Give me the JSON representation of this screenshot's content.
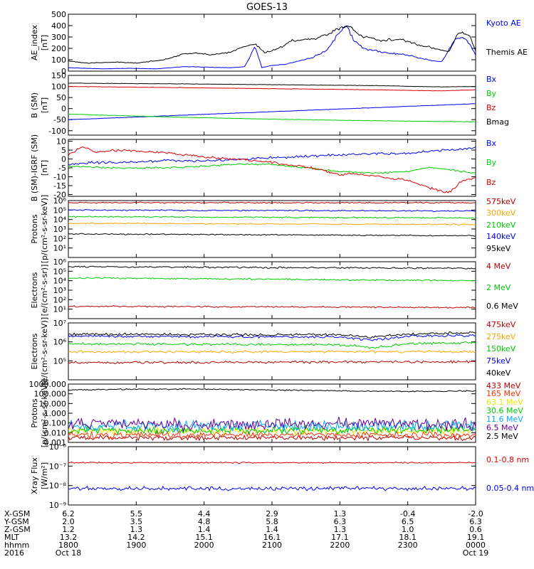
{
  "title": "GOES-13",
  "colors": {
    "black": "#000000",
    "blue": "#0000ee",
    "red": "#dd0000",
    "green": "#00cc00",
    "orange": "#ffa500",
    "darkred": "#bb0000",
    "redorange": "#ff3300",
    "yellow": "#e8e800",
    "cyan": "#00aaff",
    "purple": "#660099"
  },
  "chart_data": [
    {
      "type": "line",
      "id": "ae",
      "ylabel": [
        "AE_index",
        "[nT]"
      ],
      "yscale": "linear",
      "ylim": [
        0,
        500
      ],
      "yticks": [
        "0",
        "100",
        "200",
        "300",
        "400",
        "500"
      ],
      "series": [
        {
          "name": "Kyoto AE",
          "color": "blue",
          "noise": 0.06,
          "x": [
            18.0,
            18.5,
            18.9,
            19.3,
            19.7,
            20.0,
            20.4,
            20.6,
            20.75,
            20.85,
            21.0,
            21.2,
            21.4,
            21.6,
            21.8,
            22.0,
            22.1,
            22.2,
            22.35,
            22.5,
            22.7,
            23.0,
            23.3,
            23.5,
            23.7,
            23.8,
            23.9,
            24.0
          ],
          "y": [
            30,
            20,
            25,
            20,
            40,
            35,
            30,
            40,
            220,
            30,
            50,
            60,
            90,
            120,
            180,
            340,
            400,
            280,
            200,
            180,
            160,
            140,
            100,
            80,
            280,
            300,
            250,
            140
          ]
        },
        {
          "name": "Themis AE",
          "color": "black",
          "noise": 0.05,
          "x": [
            18.0,
            18.3,
            18.7,
            19.0,
            19.4,
            19.7,
            19.9,
            20.1,
            20.4,
            20.6,
            20.75,
            20.9,
            21.1,
            21.3,
            21.6,
            21.8,
            22.0,
            22.15,
            22.3,
            22.6,
            22.9,
            23.1,
            23.4,
            23.6,
            23.75,
            23.9,
            24.0
          ],
          "y": [
            90,
            70,
            80,
            70,
            100,
            150,
            160,
            140,
            170,
            220,
            240,
            160,
            200,
            270,
            280,
            320,
            380,
            400,
            310,
            270,
            280,
            240,
            200,
            170,
            340,
            320,
            180
          ]
        }
      ]
    },
    {
      "type": "line",
      "id": "bsm",
      "ylabel": [
        "B (SM)",
        "[nT]"
      ],
      "yscale": "linear",
      "ylim": [
        -120,
        150
      ],
      "yticks": [
        "-100",
        "-50",
        "0",
        "50",
        "100",
        "150"
      ],
      "series": [
        {
          "name": "Bx",
          "color": "blue",
          "noise": 1.0,
          "x": [
            18.0,
            24.0
          ],
          "y": [
            -50,
            22
          ]
        },
        {
          "name": "By",
          "color": "green",
          "noise": 1.0,
          "x": [
            18.0,
            19.5,
            21.0,
            22.5,
            24.0
          ],
          "y": [
            -25,
            -38,
            -48,
            -55,
            -60
          ]
        },
        {
          "name": "Bz",
          "color": "red",
          "noise": 1.0,
          "x": [
            18.0,
            19.5,
            21.0,
            22.5,
            23.5,
            24.0
          ],
          "y": [
            100,
            95,
            90,
            85,
            80,
            85
          ]
        },
        {
          "name": "Bmag",
          "color": "black",
          "noise": 1.0,
          "x": [
            18.0,
            19.5,
            21.0,
            22.5,
            23.5,
            24.0
          ],
          "y": [
            115,
            112,
            108,
            104,
            98,
            100
          ]
        }
      ]
    },
    {
      "type": "line",
      "id": "bsm_igrf",
      "ylabel": [
        "B (SM)-IGRF (SM)",
        "[nT]"
      ],
      "yscale": "linear",
      "ylim": [
        -21,
        11
      ],
      "yticks": [
        "-20",
        "-15",
        "-10",
        "-5",
        "0",
        "5",
        "10"
      ],
      "series": [
        {
          "name": "Bx",
          "color": "blue",
          "noise": 0.8,
          "x": [
            18.0,
            18.4,
            18.8,
            19.4,
            20.0,
            20.6,
            21.2,
            21.8,
            22.4,
            23.0,
            23.5,
            24.0
          ],
          "y": [
            -3,
            -2,
            -2,
            -1,
            -1,
            0,
            1,
            2,
            3,
            3,
            5,
            6
          ]
        },
        {
          "name": "By",
          "color": "green",
          "noise": 0.6,
          "x": [
            18.0,
            18.5,
            19.0,
            19.5,
            20.0,
            20.5,
            21.0,
            21.5,
            22.0,
            22.5,
            23.0,
            23.3,
            23.6,
            24.0
          ],
          "y": [
            -4,
            -5,
            -5,
            -5,
            -4,
            -3,
            -3,
            -5,
            -7,
            -8,
            -7,
            -5,
            -6,
            -8
          ]
        },
        {
          "name": "Bz",
          "color": "red",
          "noise": 0.8,
          "x": [
            18.0,
            18.2,
            18.4,
            18.8,
            19.2,
            19.6,
            20.0,
            20.4,
            20.8,
            21.2,
            21.6,
            22.0,
            22.2,
            22.6,
            23.0,
            23.3,
            23.5,
            23.6,
            23.7,
            23.8,
            24.0
          ],
          "y": [
            2,
            7,
            4,
            5,
            4,
            3,
            1,
            0,
            -1,
            -3,
            -5,
            -9,
            -8,
            -10,
            -12,
            -16,
            -18,
            -19,
            -16,
            -12,
            -11
          ]
        }
      ]
    },
    {
      "type": "line",
      "id": "protons_low",
      "ylabel": [
        "Protons",
        "[p/(cm²-s-sr-keV)]"
      ],
      "yscale": "log",
      "ylim": [
        1,
        1000000
      ],
      "yticks": [
        "10¹",
        "10²",
        "10³",
        "10⁴",
        "10⁵",
        "10⁶"
      ],
      "series": [
        {
          "name": "575keV",
          "color": "darkred",
          "noise": 0.04,
          "x": [
            18.0,
            24.0
          ],
          "y": [
            600000,
            600000
          ]
        },
        {
          "name": "300keV",
          "color": "orange",
          "noise": 0.04,
          "x": [
            18.0,
            24.0
          ],
          "y": [
            4000,
            3000
          ]
        },
        {
          "name": "210keV",
          "color": "green",
          "noise": 0.04,
          "x": [
            18.0,
            24.0
          ],
          "y": [
            20000,
            15000
          ]
        },
        {
          "name": "140keV",
          "color": "blue",
          "noise": 0.04,
          "x": [
            18.0,
            24.0
          ],
          "y": [
            100000,
            80000
          ]
        },
        {
          "name": "95keV",
          "color": "black",
          "noise": 0.04,
          "x": [
            18.0,
            24.0
          ],
          "y": [
            300,
            200
          ]
        }
      ]
    },
    {
      "type": "line",
      "id": "electrons_high",
      "ylabel": [
        "Electrons",
        "[e/(cm²-s-sr)]"
      ],
      "yscale": "log",
      "ylim": [
        1,
        1000000
      ],
      "yticks": [
        "10¹",
        "10²",
        "10³",
        "10⁴",
        "10⁵",
        "10⁶"
      ],
      "series": [
        {
          "name": "4 MeV",
          "color": "darkred",
          "noise": 0.05,
          "x": [
            18.0,
            24.0
          ],
          "y": [
            20,
            15
          ]
        },
        {
          "name": "2 MeV",
          "color": "green",
          "noise": 0.05,
          "x": [
            18.0,
            24.0
          ],
          "y": [
            20000,
            10000
          ]
        },
        {
          "name": "0.6 MeV",
          "color": "black",
          "noise": 0.05,
          "x": [
            18.0,
            24.0
          ],
          "y": [
            300000,
            200000
          ]
        }
      ]
    },
    {
      "type": "line",
      "id": "electrons_low",
      "ylabel": [
        "Electrons",
        "[e/(cm²-s-sr-keV)]"
      ],
      "yscale": "log",
      "ylim": [
        10000,
        10000000
      ],
      "yticks": [
        "10⁵",
        "10⁶",
        "10⁷"
      ],
      "series": [
        {
          "name": "475keV",
          "color": "darkred",
          "noise": 0.04,
          "x": [
            18.0,
            24.0
          ],
          "y": [
            80000,
            90000
          ]
        },
        {
          "name": "275keV",
          "color": "orange",
          "noise": 0.04,
          "x": [
            18.0,
            24.0
          ],
          "y": [
            300000,
            300000
          ]
        },
        {
          "name": "150keV",
          "color": "green",
          "noise": 0.04,
          "x": [
            18.0,
            22.0,
            22.5,
            23.0,
            24.0
          ],
          "y": [
            800000,
            700000,
            500000,
            800000,
            900000
          ]
        },
        {
          "name": "75keV",
          "color": "blue",
          "noise": 0.04,
          "x": [
            18.0,
            22.0,
            22.5,
            23.0,
            24.0
          ],
          "y": [
            2000000,
            1800000,
            1200000,
            2000000,
            2200000
          ]
        },
        {
          "name": "40keV",
          "color": "black",
          "noise": 0.04,
          "x": [
            18.0,
            22.0,
            22.5,
            23.0,
            24.0
          ],
          "y": [
            2500000,
            2400000,
            1800000,
            2600000,
            3000000
          ]
        }
      ]
    },
    {
      "type": "line",
      "id": "protons_high",
      "ylabel": [
        "Protons",
        "[p/(cm²-s-sr-keV)]"
      ],
      "yscale": "log",
      "ylim": [
        0.001,
        1000
      ],
      "yticks": [
        "0.001",
        "0.010",
        "0.100",
        "1.000",
        "10.000",
        "100.000",
        "1000.000"
      ],
      "series": [
        {
          "name": "433 MeV",
          "color": "darkred",
          "noise": 0.15,
          "x": [
            18.0,
            24.0
          ],
          "y": [
            0.003,
            0.003
          ]
        },
        {
          "name": "165 MeV",
          "color": "redorange",
          "noise": 0.2,
          "x": [
            18.0,
            24.0
          ],
          "y": [
            0.006,
            0.006
          ]
        },
        {
          "name": "63.1 MeV",
          "color": "yellow",
          "noise": 0.2,
          "x": [
            18.0,
            24.0
          ],
          "y": [
            0.015,
            0.015
          ]
        },
        {
          "name": "30.6 MeV",
          "color": "green",
          "noise": 0.25,
          "x": [
            18.0,
            24.0
          ],
          "y": [
            0.02,
            0.02
          ]
        },
        {
          "name": "11.6 MeV",
          "color": "cyan",
          "noise": 0.35,
          "x": [
            18.0,
            24.0
          ],
          "y": [
            0.05,
            0.05
          ]
        },
        {
          "name": "6.5 MeV",
          "color": "purple",
          "noise": 0.4,
          "x": [
            18.0,
            24.0
          ],
          "y": [
            0.08,
            0.08
          ]
        },
        {
          "name": "2.5 MeV",
          "color": "black",
          "noise": 0.04,
          "x": [
            18.0,
            19.0,
            20.0,
            21.0,
            22.0,
            23.0,
            24.0
          ],
          "y": [
            250,
            300,
            300,
            250,
            200,
            180,
            200
          ]
        }
      ]
    },
    {
      "type": "line",
      "id": "xray",
      "ylabel": [
        "Xray Flux",
        "[W/m²]"
      ],
      "yscale": "log",
      "ylim": [
        1e-09,
        1e-06
      ],
      "yticks": [
        "10⁻⁹",
        "10⁻⁸",
        "10⁻⁷",
        "10⁻⁶"
      ],
      "series": [
        {
          "name": "0.1-0.8 nm",
          "color": "red",
          "noise": 0.02,
          "x": [
            18.0,
            24.0
          ],
          "y": [
            1.5e-07,
            1.5e-07
          ]
        },
        {
          "name": "0.05-0.4 nm",
          "color": "blue",
          "noise": 0.06,
          "x": [
            18.0,
            24.0
          ],
          "y": [
            7e-09,
            7e-09
          ]
        }
      ]
    }
  ],
  "x_axis": {
    "range_hours": [
      18.0,
      24.0
    ],
    "tick_hours": [
      18.0,
      19.0,
      20.0,
      21.0,
      22.0,
      23.0,
      24.0
    ],
    "rows": [
      {
        "label": "X-GSM",
        "values": [
          "6.2",
          "5.5",
          "4.4",
          "2.9",
          "1.3",
          "-0.4",
          "-2.0"
        ]
      },
      {
        "label": "Y-GSM",
        "values": [
          "2.0",
          "3.5",
          "4.8",
          "5.8",
          "6.3",
          "6.5",
          "6.3"
        ]
      },
      {
        "label": "Z-GSM",
        "values": [
          "1.2",
          "1.3",
          "1.4",
          "1.4",
          "1.3",
          "1.0",
          "0.6"
        ]
      },
      {
        "label": "MLT",
        "values": [
          "13.2",
          "14.2",
          "15.1",
          "16.1",
          "17.1",
          "18.1",
          "19.1"
        ]
      },
      {
        "label": "hhmm",
        "values": [
          "1800",
          "1900",
          "2000",
          "2100",
          "2200",
          "2300",
          "0000"
        ]
      },
      {
        "label": "2016",
        "values": [
          "Oct 18",
          "",
          "",
          "",
          "",
          "",
          "Oct 19"
        ]
      }
    ]
  }
}
